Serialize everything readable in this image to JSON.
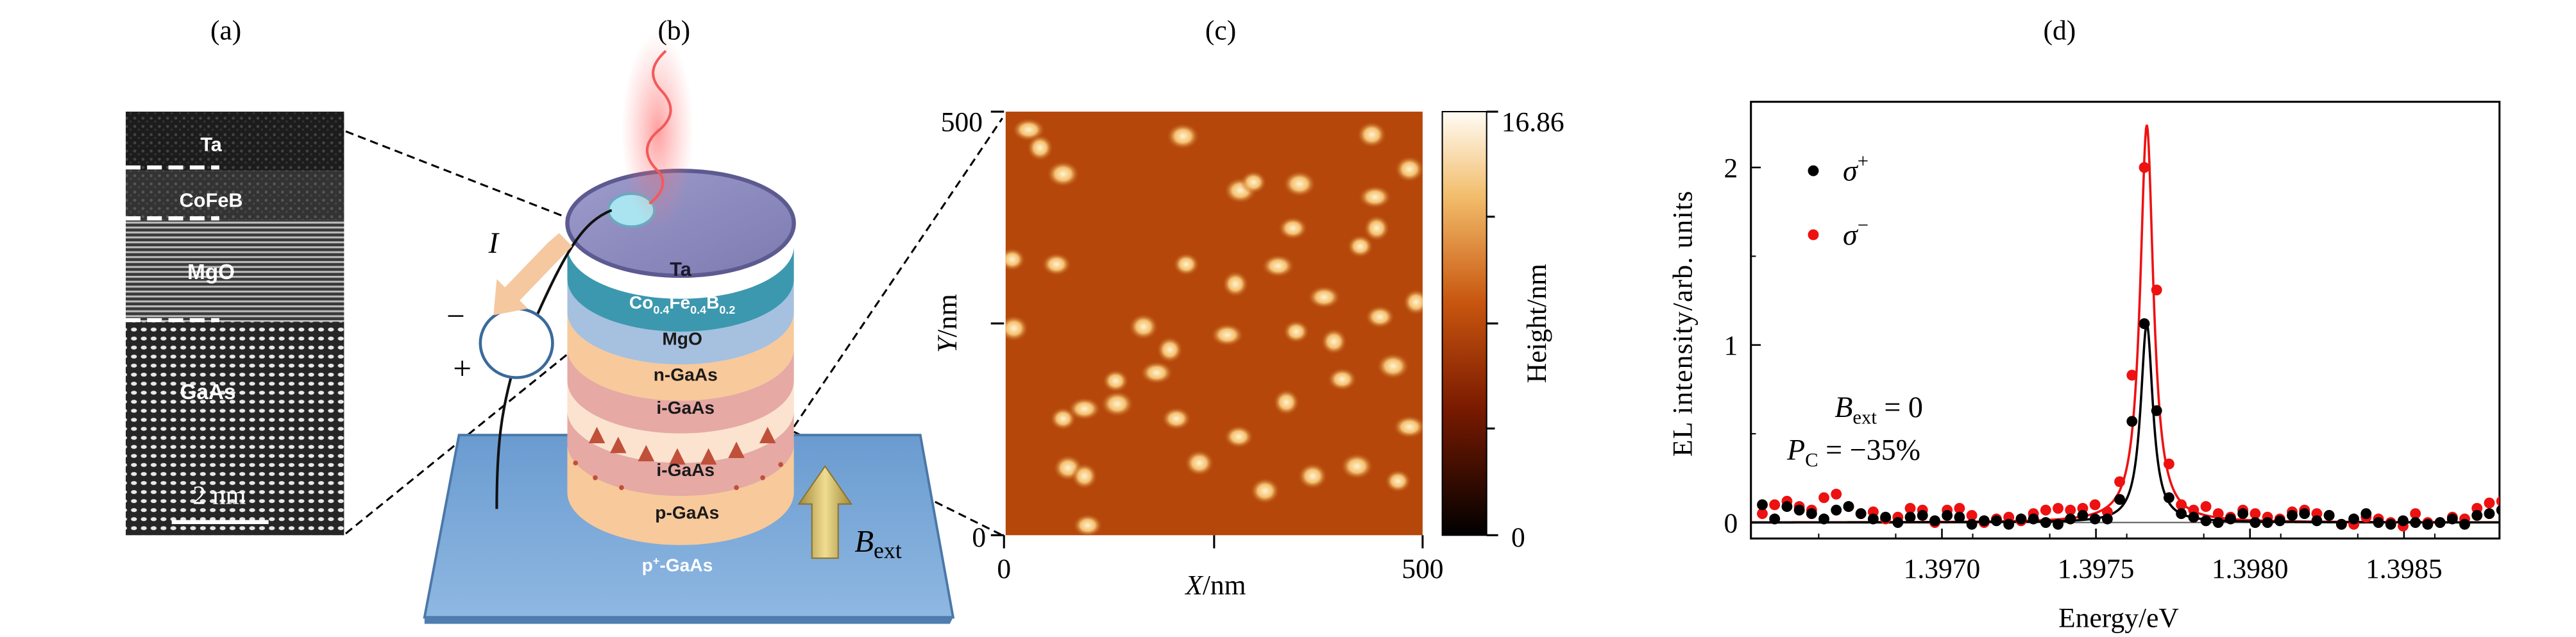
{
  "panel_labels": [
    "(a)",
    "(b)",
    "(c)",
    "(d)"
  ],
  "panel_a": {
    "layers": [
      "Ta",
      "CoFeB",
      "MgO",
      "GaAs"
    ],
    "scale_bar": "2 nm"
  },
  "panel_b": {
    "layers": {
      "ta": "Ta",
      "cofeb": {
        "co": "Co",
        "co_sub": "0.4",
        "fe": "Fe",
        "fe_sub": "0.4",
        "b": "B",
        "b_sub": "0.2"
      },
      "mgo": "MgO",
      "n_gaas": "n-GaAs",
      "i_gaas_top": "i-GaAs",
      "i_gaas_bottom": "i-GaAs",
      "p_gaas": "p-GaAs",
      "substrate": {
        "p": "p",
        "sup": "+",
        "rest": "-GaAs"
      }
    },
    "current_label": "I",
    "minus": "−",
    "plus": "+",
    "field_label": {
      "main": "B",
      "sub": "ext"
    }
  },
  "panel_c": {
    "ylabel": {
      "var": "Y",
      "unit": "/nm"
    },
    "xlabel": {
      "var": "X",
      "unit": "/nm"
    },
    "x_ticks": [
      "0",
      "500"
    ],
    "y_ticks": [
      "500",
      "0"
    ],
    "colorbar": {
      "label": "Height/nm",
      "max": "16.86",
      "min": "0"
    },
    "colors": {
      "low": "#000000",
      "mid": "#b5470a",
      "high": "#fffbf2"
    }
  },
  "chart_data": {
    "type": "scatter",
    "title": "",
    "xlabel": "Energy/eV",
    "ylabel": "EL intensity/arb. units",
    "xlim": [
      1.39638,
      1.39881
    ],
    "ylim": [
      -0.09,
      2.37
    ],
    "x_ticks": [
      "1.3970",
      "1.3975",
      "1.3980",
      "1.3985"
    ],
    "x_tick_values": [
      1.397,
      1.3975,
      1.398,
      1.3985
    ],
    "y_ticks": [
      "0",
      "1",
      "2"
    ],
    "y_tick_values": [
      0,
      1,
      2
    ],
    "x_start": 1.396417,
    "x_step": 4e-05,
    "legend_position": "top-left",
    "series": [
      {
        "name": "σ+",
        "symbol": "σ",
        "sup": "+",
        "color": "#000000",
        "values": [
          0.1,
          0.02,
          0.09,
          0.07,
          0.05,
          0.02,
          0.07,
          0.09,
          0.05,
          0.02,
          0.03,
          0.0,
          0.03,
          0.04,
          0.01,
          0.04,
          0.03,
          -0.01,
          0.01,
          0.01,
          -0.01,
          0.02,
          0.02,
          0.0,
          -0.01,
          0.02,
          0.04,
          0.02,
          0.02,
          0.13,
          0.57,
          1.12,
          0.63,
          0.14,
          0.05,
          0.03,
          0.01,
          0.0,
          0.02,
          0.05,
          0.0,
          0.0,
          0.01,
          0.04,
          0.05,
          0.01,
          0.04,
          -0.01,
          0.02,
          0.05,
          0.0,
          -0.01,
          0.01,
          0.0,
          -0.01,
          0.0,
          0.02,
          -0.01,
          0.04,
          0.05,
          0.07
        ],
        "fit": {
          "type": "lorentzian",
          "center": 1.397665,
          "hwhm": 2.4e-05,
          "amplitude": 1.12
        }
      },
      {
        "name": "σ−",
        "symbol": "σ",
        "sup": "−",
        "color": "#ee1111",
        "values": [
          0.05,
          0.1,
          0.12,
          0.09,
          0.07,
          0.14,
          0.16,
          0.09,
          0.05,
          0.06,
          0.02,
          0.03,
          0.08,
          0.07,
          0.0,
          0.07,
          0.08,
          0.04,
          0.0,
          0.02,
          0.03,
          0.01,
          0.05,
          0.07,
          0.08,
          0.07,
          0.08,
          0.1,
          0.06,
          0.23,
          0.83,
          2.0,
          1.31,
          0.33,
          0.1,
          0.07,
          0.09,
          0.05,
          0.03,
          0.07,
          0.05,
          0.03,
          0.02,
          0.06,
          0.07,
          0.05,
          0.04,
          -0.01,
          -0.01,
          0.03,
          0.02,
          0.0,
          -0.02,
          0.05,
          0.0,
          0.0,
          0.03,
          0.02,
          0.08,
          0.11,
          0.12
        ],
        "fit": {
          "type": "lorentzian",
          "center": 1.397665,
          "hwhm": 2.6e-05,
          "amplitude": 2.24
        }
      }
    ],
    "annotations": [
      {
        "main": "B",
        "sub": "ext",
        "rest": " = 0"
      },
      {
        "main": "P",
        "sub": "C",
        "rest": " = −35%"
      }
    ]
  }
}
